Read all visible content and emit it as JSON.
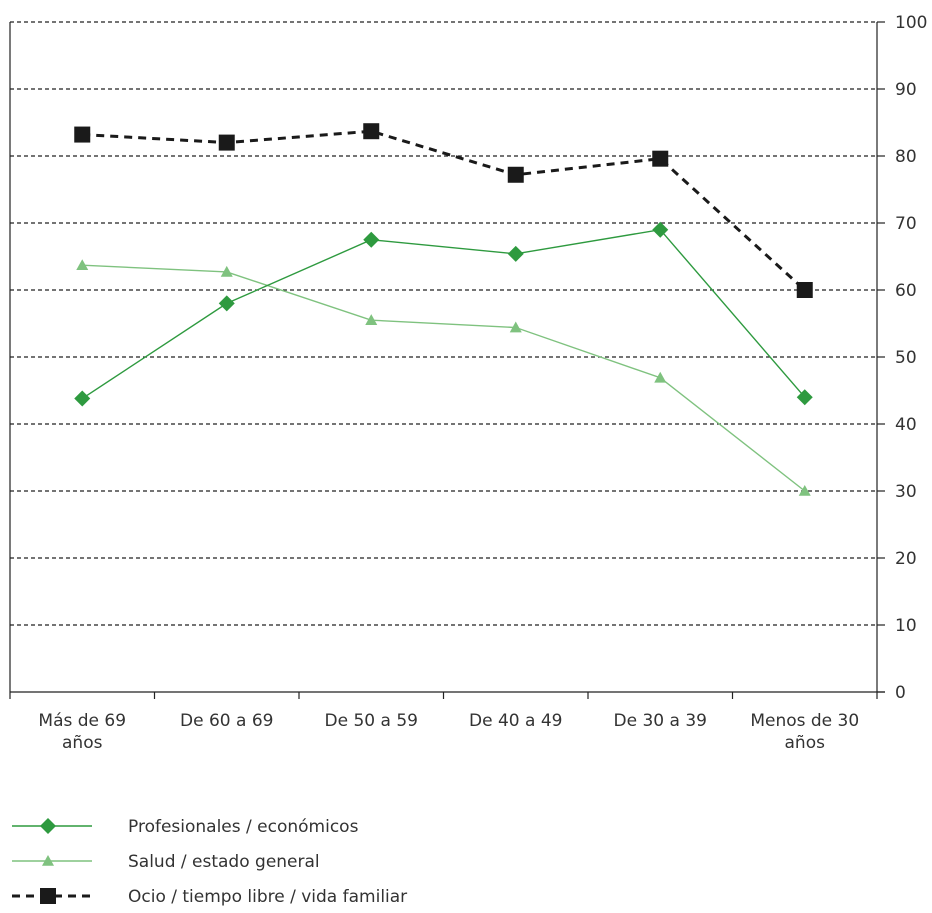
{
  "chart_data": {
    "type": "line",
    "categories": [
      [
        "Más de 69",
        "años"
      ],
      [
        "De 60 a 69"
      ],
      [
        "De 50 a 59"
      ],
      [
        "De 40 a 49"
      ],
      [
        "De 30 a 39"
      ],
      [
        "Menos de 30",
        "años"
      ]
    ],
    "ylim": [
      0,
      100
    ],
    "yticks": [
      0,
      10,
      20,
      30,
      40,
      50,
      60,
      70,
      80,
      90,
      100
    ],
    "y_axis_side": "right",
    "grid": true,
    "legend_position": "bottom-left",
    "series": [
      {
        "name": "Profesionales / económicos",
        "values": [
          43.8,
          58.0,
          67.5,
          65.4,
          69.0,
          44.0
        ],
        "color": "#2e9a3f",
        "marker": "diamond",
        "line_style": "solid"
      },
      {
        "name": "Salud / estado general",
        "values": [
          63.7,
          62.7,
          55.5,
          54.4,
          46.9,
          30.0
        ],
        "color": "#7fc27f",
        "marker": "triangle",
        "line_style": "solid"
      },
      {
        "name": "Ocio / tiempo libre / vida familiar",
        "values": [
          83.2,
          82.0,
          83.7,
          77.2,
          79.6,
          60.0
        ],
        "color": "#1a1a1a",
        "marker": "square",
        "line_style": "dashed"
      }
    ]
  }
}
